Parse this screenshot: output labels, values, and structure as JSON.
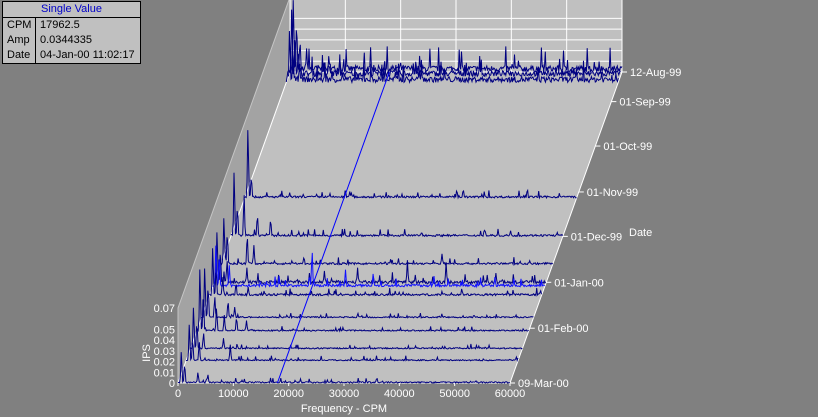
{
  "single_value": {
    "title": "Single Value",
    "rows": [
      {
        "key": "CPM",
        "value": "17962.5"
      },
      {
        "key": "Amp",
        "value": "0.0344335"
      },
      {
        "key": "Date",
        "value": "04-Jan-00 11:02:17"
      }
    ]
  },
  "colors": {
    "background": "#808080",
    "floor": "#c0c0c0",
    "wall": "#c0c0c0",
    "trace": "#000080",
    "trace_highlight": "#1010ff",
    "cursor": "#0000ff",
    "text": "#ffffff"
  },
  "chart_data": {
    "type": "waterfall",
    "xlabel": "Frequency - CPM",
    "ylabel": "IPS",
    "zlabel": "Date",
    "x_range": [
      0,
      60000
    ],
    "y_range": [
      0,
      0.07
    ],
    "x_ticks": [
      0,
      10000,
      20000,
      30000,
      40000,
      50000,
      60000
    ],
    "x_tick_labels": [
      "0",
      "10000",
      "20000",
      "30000",
      "40000",
      "50000",
      "60000"
    ],
    "y_ticks": [
      0,
      0.01,
      0.02,
      0.03,
      0.04,
      0.05,
      0.07
    ],
    "y_tick_labels": [
      "0",
      "0.01",
      "0.02",
      "0.03",
      "0.04",
      "0.05",
      "0.07"
    ],
    "date_ticks": [
      {
        "label": "12-Aug-99",
        "date": "1999-08-12"
      },
      {
        "label": "01-Sep-99",
        "date": "1999-09-01"
      },
      {
        "label": "01-Oct-99",
        "date": "1999-10-01"
      },
      {
        "label": "01-Nov-99",
        "date": "1999-11-01"
      },
      {
        "label": "01-Dec-99",
        "date": "1999-12-01"
      },
      {
        "label": "01-Jan-00",
        "date": "2000-01-01"
      },
      {
        "label": "01-Feb-00",
        "date": "2000-02-01"
      },
      {
        "label": "09-Mar-00",
        "date": "2000-03-09"
      }
    ],
    "cursor": {
      "cpm": 17962.5,
      "date": "2000-01-04"
    },
    "spectra": [
      {
        "date": "1999-08-12",
        "peaks": [
          [
            600,
            0.07
          ],
          [
            1200,
            0.046
          ],
          [
            1800,
            0.03
          ],
          [
            3000,
            0.022
          ],
          [
            9000,
            0.012
          ]
        ],
        "noise": 0.01
      },
      {
        "date": "1999-08-15",
        "peaks": [
          [
            600,
            0.065
          ],
          [
            1200,
            0.04
          ],
          [
            1800,
            0.025
          ],
          [
            7500,
            0.015
          ]
        ],
        "noise": 0.009
      },
      {
        "date": "1999-08-19",
        "peaks": [
          [
            600,
            0.05
          ],
          [
            1200,
            0.03
          ],
          [
            2400,
            0.018
          ],
          [
            24000,
            0.014
          ]
        ],
        "noise": 0.009
      },
      {
        "date": "1999-11-05",
        "peaks": [
          [
            600,
            0.066
          ],
          [
            1200,
            0.02
          ],
          [
            19000,
            0.006
          ]
        ],
        "noise": 0.003
      },
      {
        "date": "1999-12-01",
        "peaks": [
          [
            600,
            0.062
          ],
          [
            1200,
            0.028
          ],
          [
            2400,
            0.04
          ],
          [
            4800,
            0.02
          ],
          [
            7200,
            0.016
          ]
        ],
        "noise": 0.003
      },
      {
        "date": "1999-12-20",
        "peaks": [
          [
            600,
            0.045
          ],
          [
            1200,
            0.03
          ],
          [
            4800,
            0.028
          ],
          [
            6000,
            0.018
          ],
          [
            15000,
            0.006
          ],
          [
            40000,
            0.01
          ]
        ],
        "noise": 0.003
      },
      {
        "date": "2000-01-02",
        "peaks": [
          [
            600,
            0.05
          ],
          [
            1200,
            0.032
          ],
          [
            2400,
            0.022
          ],
          [
            6000,
            0.015
          ],
          [
            20000,
            0.012
          ],
          [
            26000,
            0.015
          ],
          [
            35000,
            0.022
          ],
          [
            42000,
            0.02
          ],
          [
            51000,
            0.01
          ]
        ],
        "noise": 0.005
      },
      {
        "date": "2000-01-04",
        "peaks": [
          [
            600,
            0.04
          ],
          [
            1200,
            0.03
          ],
          [
            3000,
            0.02
          ],
          [
            12000,
            0.01
          ],
          [
            17962,
            0.034
          ],
          [
            24000,
            0.016
          ],
          [
            29000,
            0.012
          ],
          [
            40000,
            0.01
          ],
          [
            51000,
            0.009
          ]
        ],
        "noise": 0.004
      },
      {
        "date": "2000-01-10",
        "peaks": [
          [
            600,
            0.046
          ],
          [
            1200,
            0.025
          ],
          [
            2400,
            0.018
          ],
          [
            4800,
            0.012
          ],
          [
            7000,
            0.008
          ]
        ],
        "noise": 0.003
      },
      {
        "date": "2000-01-25",
        "peaks": [
          [
            600,
            0.048
          ],
          [
            1200,
            0.03
          ],
          [
            2400,
            0.02
          ],
          [
            4800,
            0.016
          ],
          [
            6000,
            0.01
          ]
        ],
        "noise": 0.002
      },
      {
        "date": "2000-02-03",
        "peaks": [
          [
            600,
            0.06
          ],
          [
            1200,
            0.035
          ],
          [
            3600,
            0.022
          ],
          [
            5000,
            0.015
          ],
          [
            7200,
            0.013
          ],
          [
            9000,
            0.01
          ]
        ],
        "noise": 0.002
      },
      {
        "date": "2000-02-15",
        "peaks": [
          [
            600,
            0.04
          ],
          [
            1200,
            0.025
          ],
          [
            2400,
            0.015
          ],
          [
            6000,
            0.01
          ]
        ],
        "noise": 0.002
      },
      {
        "date": "2000-02-23",
        "peaks": [
          [
            600,
            0.035
          ],
          [
            1200,
            0.02
          ],
          [
            2400,
            0.018
          ],
          [
            8000,
            0.015
          ]
        ],
        "noise": 0.002
      },
      {
        "date": "2000-03-09",
        "peaks": [
          [
            600,
            0.03
          ],
          [
            1200,
            0.018
          ],
          [
            3600,
            0.01
          ],
          [
            5400,
            0.008
          ]
        ],
        "noise": 0.002
      }
    ]
  }
}
